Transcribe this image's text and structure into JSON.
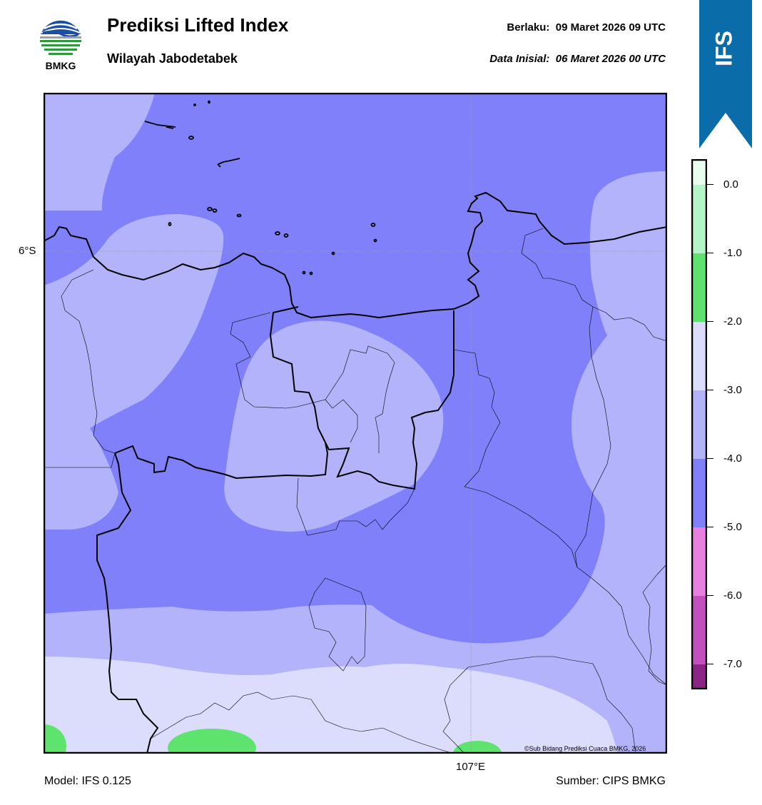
{
  "header": {
    "logo_text": "BMKG",
    "title": "Prediksi Lifted Index",
    "subtitle": "Wilayah Jabodetabek",
    "valid_label": "Berlaku:",
    "valid_value": "09 Maret 2026 09 UTC",
    "init_label": "Data Inisial:",
    "init_value": "06 Maret 2026 00 UTC"
  },
  "ribbon": {
    "label": "IFS",
    "color": "#0a6ca8"
  },
  "map": {
    "lat_label": "6°S",
    "lon_label": "107°E",
    "credit": "©Sub Bidang Prediksi Cuaca BMKG, 2026",
    "background_level": "-4.0 to -5.0"
  },
  "colorbar": {
    "ticks": [
      "0.0",
      "-1.0",
      "-2.0",
      "-3.0",
      "-4.0",
      "-5.0",
      "-6.0",
      "-7.0"
    ],
    "colors": {
      "gt_0": "#e6ffee",
      "0_-1": "#b3f5c7",
      "-1_-2": "#5ee46e",
      "-2_-3": "#dcdcfd",
      "-3_-4": "#b3b3fc",
      "-4_-5": "#8080fb",
      "-5_-6": "#e880e0",
      "-6_-7": "#c450c0",
      "lt_-7": "#8a2585"
    }
  },
  "footer": {
    "model": "Model: IFS 0.125",
    "source": "Sumber: CIPS BMKG"
  }
}
